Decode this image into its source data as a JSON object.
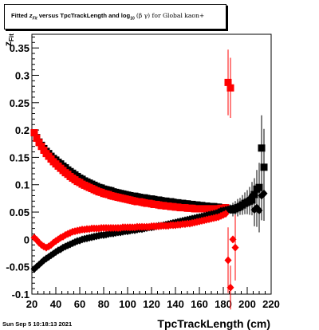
{
  "title": {
    "part1": "Fitted",
    "z": "z",
    "z_sub": "Fit",
    "part2": "versus TpcTrackLength and log",
    "log_sub": "10",
    "part3": "(β  γ) for Global kaon+"
  },
  "timestamp": "Sun Sep  5 10:18:13 2021",
  "colors": {
    "series_black": "#000000",
    "series_red": "#ff0000"
  },
  "chart_data": {
    "type": "scatter",
    "title": "Fitted zFit versus TpcTrackLength and log10(β γ) for Global kaon+",
    "xlabel": "TpcTrackLength (cm)",
    "ylabel": "z_Fit",
    "xlim": [
      20,
      220
    ],
    "ylim": [
      -0.1,
      0.375
    ],
    "xticks": [
      20,
      40,
      60,
      80,
      100,
      120,
      140,
      160,
      180,
      200,
      220
    ],
    "yticks": [
      -0.1,
      -0.05,
      0,
      0.05,
      0.1,
      0.15,
      0.2,
      0.25,
      0.3,
      0.35
    ],
    "ytick_labels": [
      "-0.1",
      "-0.05",
      "0",
      "0.05",
      "0.1",
      "0.15",
      "0.2",
      "0.25",
      "0.3",
      "0.35"
    ],
    "grid": false,
    "legend": "none",
    "series": [
      {
        "marker": "square",
        "color": "#000000",
        "x": [
          22,
          24,
          26,
          28,
          30,
          32,
          34,
          36,
          38,
          40,
          42,
          44,
          46,
          48,
          50,
          52,
          54,
          56,
          58,
          60,
          62,
          64,
          66,
          68,
          70,
          72,
          74,
          76,
          78,
          80,
          82,
          84,
          86,
          88,
          90,
          92,
          94,
          96,
          98,
          100,
          102,
          104,
          106,
          108,
          110,
          112,
          114,
          116,
          118,
          120,
          122,
          124,
          126,
          128,
          130,
          132,
          134,
          136,
          138,
          140,
          142,
          144,
          146,
          148,
          150,
          152,
          154,
          156,
          158,
          160,
          162,
          164,
          166,
          168,
          170,
          172,
          174,
          176,
          178,
          180,
          182,
          184,
          186,
          188,
          190,
          192,
          194,
          196,
          198,
          200,
          202,
          204,
          206,
          208,
          210,
          212,
          214
        ],
        "y": [
          0.195,
          0.186,
          0.178,
          0.172,
          0.166,
          0.161,
          0.157,
          0.152,
          0.148,
          0.145,
          0.141,
          0.138,
          0.134,
          0.131,
          0.127,
          0.124,
          0.121,
          0.118,
          0.115,
          0.112,
          0.11,
          0.107,
          0.105,
          0.103,
          0.101,
          0.099,
          0.097,
          0.095,
          0.094,
          0.092,
          0.091,
          0.09,
          0.089,
          0.087,
          0.086,
          0.085,
          0.084,
          0.083,
          0.082,
          0.081,
          0.08,
          0.079,
          0.079,
          0.078,
          0.077,
          0.076,
          0.076,
          0.075,
          0.074,
          0.074,
          0.073,
          0.072,
          0.072,
          0.071,
          0.07,
          0.07,
          0.069,
          0.069,
          0.068,
          0.067,
          0.067,
          0.066,
          0.066,
          0.065,
          0.065,
          0.064,
          0.064,
          0.063,
          0.063,
          0.062,
          0.062,
          0.061,
          0.061,
          0.06,
          0.06,
          0.06,
          0.059,
          0.059,
          0.058,
          0.058,
          0.057,
          0.056,
          0.055,
          0.054,
          0.056,
          0.058,
          0.06,
          0.063,
          0.066,
          0.068,
          0.07,
          0.072,
          0.082,
          0.092,
          0.095,
          0.167,
          0.132
        ],
        "err": [
          0.003,
          0.003,
          0.003,
          0.003,
          0.003,
          0.003,
          0.003,
          0.003,
          0.003,
          0.003,
          0.003,
          0.003,
          0.003,
          0.003,
          0.003,
          0.003,
          0.003,
          0.003,
          0.003,
          0.003,
          0.003,
          0.003,
          0.003,
          0.003,
          0.003,
          0.003,
          0.003,
          0.003,
          0.003,
          0.003,
          0.003,
          0.003,
          0.003,
          0.003,
          0.003,
          0.003,
          0.003,
          0.003,
          0.003,
          0.003,
          0.003,
          0.003,
          0.003,
          0.003,
          0.003,
          0.003,
          0.003,
          0.003,
          0.003,
          0.003,
          0.003,
          0.003,
          0.003,
          0.003,
          0.003,
          0.003,
          0.003,
          0.003,
          0.003,
          0.003,
          0.003,
          0.003,
          0.003,
          0.003,
          0.003,
          0.003,
          0.003,
          0.003,
          0.003,
          0.003,
          0.003,
          0.003,
          0.003,
          0.003,
          0.003,
          0.003,
          0.003,
          0.003,
          0.003,
          0.003,
          0.003,
          0.005,
          0.008,
          0.012,
          0.014,
          0.016,
          0.015,
          0.018,
          0.02,
          0.022,
          0.025,
          0.028,
          0.03,
          0.035,
          0.045,
          0.06,
          0.07
        ]
      },
      {
        "marker": "square",
        "color": "#ff0000",
        "x": [
          22,
          24,
          26,
          28,
          30,
          32,
          34,
          36,
          38,
          40,
          42,
          44,
          46,
          48,
          50,
          52,
          54,
          56,
          58,
          60,
          62,
          64,
          66,
          68,
          70,
          72,
          74,
          76,
          78,
          80,
          82,
          84,
          86,
          88,
          90,
          92,
          94,
          96,
          98,
          100,
          102,
          104,
          106,
          108,
          110,
          112,
          114,
          116,
          118,
          120,
          122,
          124,
          126,
          128,
          130,
          132,
          134,
          136,
          138,
          140,
          142,
          144,
          146,
          148,
          150,
          152,
          154,
          156,
          158,
          160,
          162,
          164,
          166,
          168,
          170,
          172,
          174,
          176,
          178,
          180,
          182,
          184,
          186
        ],
        "y": [
          0.195,
          0.185,
          0.177,
          0.17,
          0.163,
          0.157,
          0.152,
          0.147,
          0.142,
          0.138,
          0.134,
          0.13,
          0.126,
          0.122,
          0.119,
          0.115,
          0.112,
          0.109,
          0.106,
          0.104,
          0.101,
          0.099,
          0.097,
          0.095,
          0.093,
          0.091,
          0.089,
          0.087,
          0.086,
          0.084,
          0.083,
          0.082,
          0.08,
          0.079,
          0.078,
          0.077,
          0.076,
          0.075,
          0.074,
          0.073,
          0.072,
          0.071,
          0.07,
          0.069,
          0.069,
          0.068,
          0.067,
          0.066,
          0.066,
          0.065,
          0.064,
          0.064,
          0.063,
          0.062,
          0.062,
          0.061,
          0.061,
          0.06,
          0.06,
          0.059,
          0.059,
          0.058,
          0.058,
          0.058,
          0.057,
          0.057,
          0.057,
          0.056,
          0.056,
          0.056,
          0.056,
          0.056,
          0.056,
          0.056,
          0.056,
          0.056,
          0.056,
          0.056,
          0.057,
          0.057,
          0.058,
          0.287,
          0.277
        ],
        "err": [
          0.003,
          0.003,
          0.003,
          0.003,
          0.003,
          0.003,
          0.003,
          0.003,
          0.003,
          0.003,
          0.003,
          0.003,
          0.003,
          0.003,
          0.003,
          0.003,
          0.003,
          0.003,
          0.003,
          0.003,
          0.003,
          0.003,
          0.003,
          0.003,
          0.003,
          0.003,
          0.003,
          0.003,
          0.003,
          0.003,
          0.003,
          0.003,
          0.003,
          0.003,
          0.003,
          0.003,
          0.003,
          0.003,
          0.003,
          0.003,
          0.003,
          0.003,
          0.003,
          0.003,
          0.003,
          0.003,
          0.003,
          0.003,
          0.003,
          0.003,
          0.003,
          0.003,
          0.003,
          0.003,
          0.003,
          0.003,
          0.003,
          0.003,
          0.003,
          0.003,
          0.003,
          0.003,
          0.003,
          0.003,
          0.003,
          0.003,
          0.003,
          0.003,
          0.003,
          0.003,
          0.003,
          0.003,
          0.003,
          0.003,
          0.003,
          0.003,
          0.003,
          0.003,
          0.003,
          0.003,
          0.004,
          0.06,
          0.055
        ]
      },
      {
        "marker": "diamond",
        "color": "#000000",
        "x": [
          22,
          24,
          26,
          28,
          30,
          32,
          34,
          36,
          38,
          40,
          42,
          44,
          46,
          48,
          50,
          52,
          54,
          56,
          58,
          60,
          62,
          64,
          66,
          68,
          70,
          72,
          74,
          76,
          78,
          80,
          82,
          84,
          86,
          88,
          90,
          92,
          94,
          96,
          98,
          100,
          102,
          104,
          106,
          108,
          110,
          112,
          114,
          116,
          118,
          120,
          122,
          124,
          126,
          128,
          130,
          132,
          134,
          136,
          138,
          140,
          142,
          144,
          146,
          148,
          150,
          152,
          154,
          156,
          158,
          160,
          162,
          164,
          166,
          168,
          170,
          172,
          174,
          176,
          178,
          180,
          182,
          184,
          186,
          188,
          190,
          192,
          194,
          196,
          198,
          200,
          202,
          204,
          206,
          208,
          210,
          212,
          214
        ],
        "y": [
          -0.054,
          -0.05,
          -0.046,
          -0.042,
          -0.038,
          -0.035,
          -0.032,
          -0.029,
          -0.026,
          -0.023,
          -0.02,
          -0.018,
          -0.015,
          -0.013,
          -0.011,
          -0.009,
          -0.007,
          -0.005,
          -0.003,
          -0.002,
          0,
          0.001,
          0.002,
          0.003,
          0.004,
          0.005,
          0.006,
          0.007,
          0.008,
          0.008,
          0.009,
          0.01,
          0.011,
          0.011,
          0.012,
          0.013,
          0.013,
          0.014,
          0.015,
          0.015,
          0.016,
          0.017,
          0.017,
          0.018,
          0.019,
          0.019,
          0.02,
          0.021,
          0.022,
          0.022,
          0.023,
          0.024,
          0.025,
          0.025,
          0.026,
          0.027,
          0.028,
          0.029,
          0.03,
          0.031,
          0.032,
          0.033,
          0.034,
          0.035,
          0.036,
          0.037,
          0.038,
          0.039,
          0.04,
          0.041,
          0.042,
          0.043,
          0.044,
          0.045,
          0.046,
          0.047,
          0.048,
          0.05,
          0.052,
          0.053,
          0.054,
          0.055,
          0.056,
          0.057,
          0.058,
          0.06,
          0.062,
          0.064,
          0.067,
          0.07,
          0.074,
          0.08,
          0.054,
          0.058,
          0.053,
          0.08,
          0.084
        ],
        "err": [
          0.003,
          0.003,
          0.003,
          0.003,
          0.003,
          0.003,
          0.003,
          0.003,
          0.003,
          0.003,
          0.003,
          0.003,
          0.003,
          0.003,
          0.003,
          0.003,
          0.003,
          0.003,
          0.003,
          0.003,
          0.003,
          0.003,
          0.003,
          0.003,
          0.003,
          0.003,
          0.003,
          0.003,
          0.003,
          0.003,
          0.003,
          0.003,
          0.003,
          0.003,
          0.003,
          0.003,
          0.003,
          0.003,
          0.003,
          0.003,
          0.003,
          0.003,
          0.003,
          0.003,
          0.003,
          0.003,
          0.003,
          0.003,
          0.003,
          0.003,
          0.003,
          0.003,
          0.003,
          0.003,
          0.003,
          0.003,
          0.003,
          0.003,
          0.003,
          0.003,
          0.003,
          0.003,
          0.003,
          0.003,
          0.003,
          0.003,
          0.003,
          0.003,
          0.003,
          0.003,
          0.003,
          0.003,
          0.003,
          0.003,
          0.003,
          0.003,
          0.003,
          0.003,
          0.003,
          0.003,
          0.004,
          0.006,
          0.008,
          0.01,
          0.012,
          0.013,
          0.014,
          0.016,
          0.018,
          0.02,
          0.022,
          0.025,
          0.03,
          0.035,
          0.04,
          0.045,
          0.05
        ]
      },
      {
        "marker": "diamond",
        "color": "#ff0000",
        "x": [
          22,
          24,
          26,
          28,
          30,
          32,
          34,
          36,
          38,
          40,
          42,
          44,
          46,
          48,
          50,
          52,
          54,
          56,
          58,
          60,
          62,
          64,
          66,
          68,
          70,
          72,
          74,
          76,
          78,
          80,
          82,
          84,
          86,
          88,
          90,
          92,
          94,
          96,
          98,
          100,
          102,
          104,
          106,
          108,
          110,
          112,
          114,
          116,
          118,
          120,
          122,
          124,
          126,
          128,
          130,
          132,
          134,
          136,
          138,
          140,
          142,
          144,
          146,
          148,
          150,
          152,
          154,
          156,
          158,
          160,
          162,
          164,
          166,
          168,
          170,
          172,
          174,
          176,
          178,
          180,
          182,
          184,
          186,
          188,
          190
        ],
        "y": [
          0.003,
          -0.001,
          -0.006,
          -0.01,
          -0.013,
          -0.015,
          -0.013,
          -0.01,
          -0.006,
          -0.003,
          0.0,
          0.003,
          0.005,
          0.008,
          0.01,
          0.012,
          0.014,
          0.015,
          0.016,
          0.017,
          0.018,
          0.018,
          0.019,
          0.019,
          0.02,
          0.02,
          0.02,
          0.02,
          0.021,
          0.021,
          0.021,
          0.021,
          0.021,
          0.021,
          0.021,
          0.021,
          0.021,
          0.022,
          0.022,
          0.022,
          0.022,
          0.022,
          0.022,
          0.023,
          0.023,
          0.023,
          0.023,
          0.023,
          0.023,
          0.024,
          0.024,
          0.024,
          0.024,
          0.025,
          0.025,
          0.025,
          0.025,
          0.026,
          0.026,
          0.026,
          0.027,
          0.027,
          0.028,
          0.028,
          0.029,
          0.029,
          0.03,
          0.031,
          0.032,
          0.033,
          0.034,
          0.035,
          0.036,
          0.037,
          0.038,
          0.039,
          0.04,
          0.041,
          0.043,
          0.045,
          0.047,
          -0.038,
          -0.088,
          0.0,
          -0.015
        ],
        "err": [
          0.003,
          0.003,
          0.003,
          0.003,
          0.003,
          0.003,
          0.003,
          0.003,
          0.003,
          0.003,
          0.003,
          0.003,
          0.003,
          0.003,
          0.003,
          0.003,
          0.003,
          0.003,
          0.003,
          0.003,
          0.003,
          0.003,
          0.003,
          0.003,
          0.003,
          0.003,
          0.003,
          0.003,
          0.003,
          0.003,
          0.003,
          0.003,
          0.003,
          0.003,
          0.003,
          0.003,
          0.003,
          0.003,
          0.003,
          0.003,
          0.003,
          0.003,
          0.003,
          0.003,
          0.003,
          0.003,
          0.003,
          0.003,
          0.003,
          0.003,
          0.003,
          0.003,
          0.003,
          0.003,
          0.003,
          0.003,
          0.003,
          0.003,
          0.003,
          0.003,
          0.003,
          0.003,
          0.003,
          0.003,
          0.003,
          0.003,
          0.003,
          0.003,
          0.003,
          0.003,
          0.003,
          0.003,
          0.003,
          0.003,
          0.003,
          0.003,
          0.003,
          0.003,
          0.003,
          0.003,
          0.003,
          0.06,
          0.04,
          0.0,
          0.06
        ]
      }
    ]
  }
}
